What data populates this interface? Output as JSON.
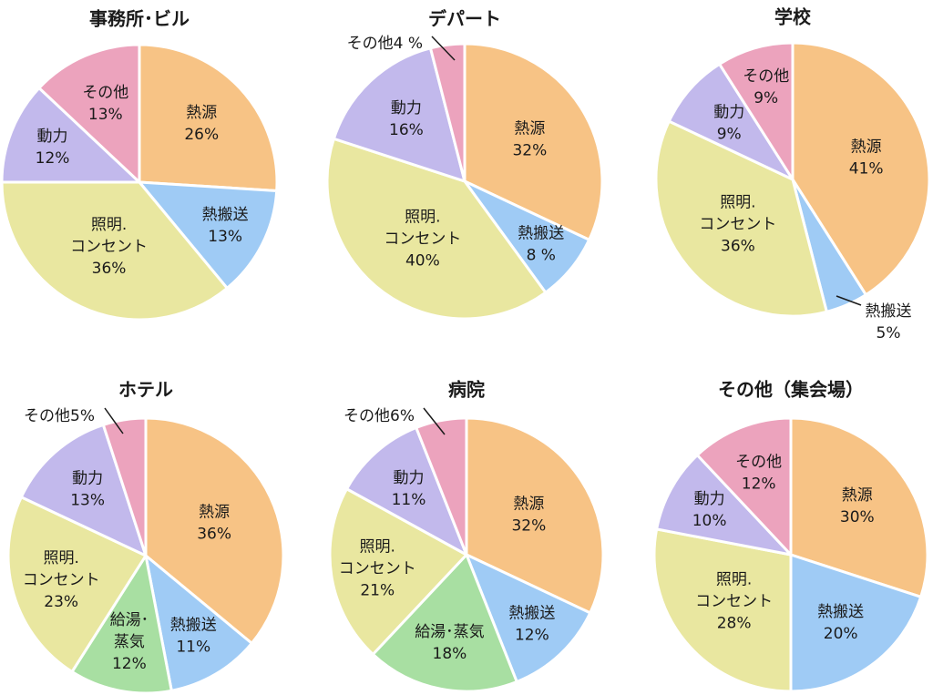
{
  "colors": {
    "heat_source": "#f7c385",
    "heat_transport": "#9fcbf5",
    "lighting": "#e9e7a0",
    "hot_water": "#a8dfa2",
    "power": "#c2b9ec",
    "other": "#eca3bd"
  },
  "chart_data": [
    {
      "type": "pie",
      "title": "事務所･ビル",
      "slices": [
        {
          "label": "熱源",
          "value_text": "26%",
          "value": 26,
          "color_key": "heat_source"
        },
        {
          "label": "熱搬送",
          "value_text": "13%",
          "value": 13,
          "color_key": "heat_transport"
        },
        {
          "label": "照明.\nコンセント",
          "value_text": "36%",
          "value": 36,
          "color_key": "lighting"
        },
        {
          "label": "動力",
          "value_text": "12%",
          "value": 12,
          "color_key": "power"
        },
        {
          "label": "その他",
          "value_text": "13%",
          "value": 13,
          "color_key": "other"
        }
      ]
    },
    {
      "type": "pie",
      "title": "デパート",
      "slices": [
        {
          "label": "熱源",
          "value_text": "32%",
          "value": 32,
          "color_key": "heat_source"
        },
        {
          "label": "熱搬送",
          "value_text": "8 %",
          "value": 8,
          "color_key": "heat_transport"
        },
        {
          "label": "照明.\nコンセント",
          "value_text": "40%",
          "value": 40,
          "color_key": "lighting"
        },
        {
          "label": "動力",
          "value_text": "16%",
          "value": 16,
          "color_key": "power"
        },
        {
          "label": "その他",
          "value_text": "4 %",
          "value": 4,
          "color_key": "other",
          "inline": true
        }
      ]
    },
    {
      "type": "pie",
      "title": "学校",
      "slices": [
        {
          "label": "熱源",
          "value_text": "41%",
          "value": 41,
          "color_key": "heat_source"
        },
        {
          "label": "熱搬送",
          "value_text": "5%",
          "value": 5,
          "color_key": "heat_transport"
        },
        {
          "label": "照明.\nコンセント",
          "value_text": "36%",
          "value": 36,
          "color_key": "lighting"
        },
        {
          "label": "動力",
          "value_text": "9%",
          "value": 9,
          "color_key": "power"
        },
        {
          "label": "その他",
          "value_text": "9%",
          "value": 9,
          "color_key": "other"
        }
      ]
    },
    {
      "type": "pie",
      "title": "ホテル",
      "slices": [
        {
          "label": "熱源",
          "value_text": "36%",
          "value": 36,
          "color_key": "heat_source"
        },
        {
          "label": "熱搬送",
          "value_text": "11%",
          "value": 11,
          "color_key": "heat_transport"
        },
        {
          "label": "給湯･\n蒸気",
          "value_text": "12%",
          "value": 12,
          "color_key": "hot_water"
        },
        {
          "label": "照明.\nコンセント",
          "value_text": "23%",
          "value": 23,
          "color_key": "lighting"
        },
        {
          "label": "動力",
          "value_text": "13%",
          "value": 13,
          "color_key": "power"
        },
        {
          "label": "その他",
          "value_text": "5%",
          "value": 5,
          "color_key": "other",
          "inline": true
        }
      ]
    },
    {
      "type": "pie",
      "title": "病院",
      "slices": [
        {
          "label": "熱源",
          "value_text": "32%",
          "value": 32,
          "color_key": "heat_source"
        },
        {
          "label": "熱搬送",
          "value_text": "12%",
          "value": 12,
          "color_key": "heat_transport"
        },
        {
          "label": "給湯･蒸気",
          "value_text": "18%",
          "value": 18,
          "color_key": "hot_water"
        },
        {
          "label": "照明.\nコンセント",
          "value_text": "21%",
          "value": 21,
          "color_key": "lighting"
        },
        {
          "label": "動力",
          "value_text": "11%",
          "value": 11,
          "color_key": "power"
        },
        {
          "label": "その他",
          "value_text": "6%",
          "value": 6,
          "color_key": "other",
          "inline": true
        }
      ]
    },
    {
      "type": "pie",
      "title": "その他（集会場）",
      "slices": [
        {
          "label": "熱源",
          "value_text": "30%",
          "value": 30,
          "color_key": "heat_source"
        },
        {
          "label": "熱搬送",
          "value_text": "20%",
          "value": 20,
          "color_key": "heat_transport"
        },
        {
          "label": "照明.\nコンセント",
          "value_text": "28%",
          "value": 28,
          "color_key": "lighting"
        },
        {
          "label": "動力",
          "value_text": "10%",
          "value": 10,
          "color_key": "power"
        },
        {
          "label": "その他",
          "value_text": "12%",
          "value": 12,
          "color_key": "other"
        }
      ]
    }
  ]
}
